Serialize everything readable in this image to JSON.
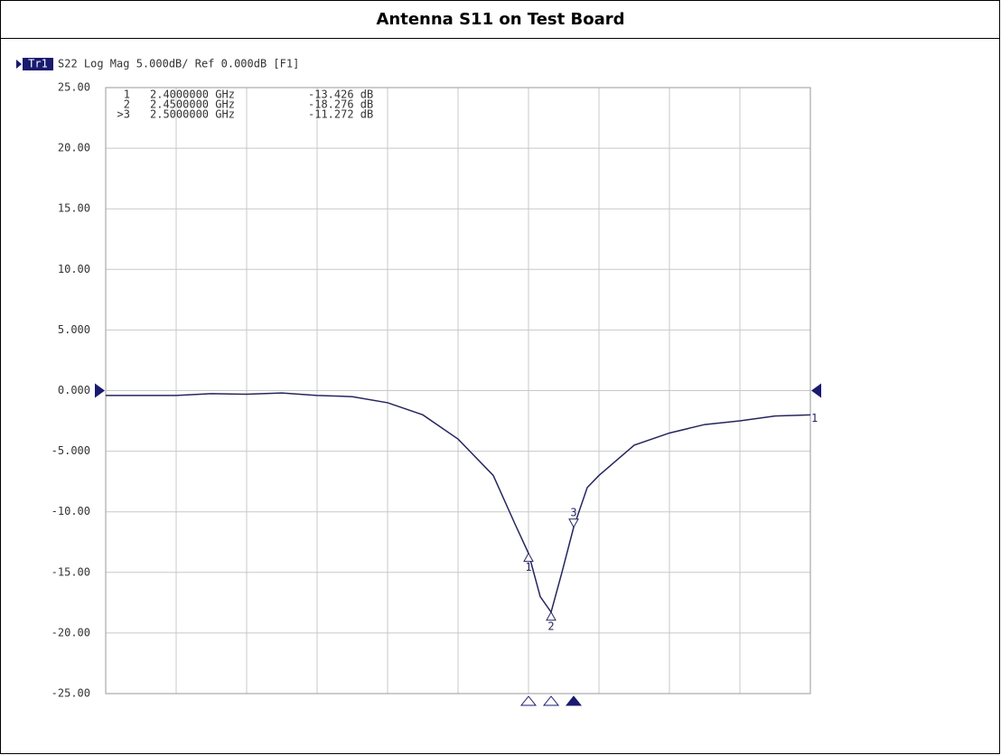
{
  "chart_data": {
    "type": "line",
    "title": "Antenna S11 on Test Board",
    "trace_label": "Tr1",
    "subtitle": "S22 Log Mag 5.000dB/ Ref 0.000dB [F1]",
    "trace_number": "1",
    "x": [
      1.464,
      1.62,
      1.698,
      1.776,
      1.854,
      1.932,
      2.01,
      2.088,
      2.166,
      2.244,
      2.322,
      2.37,
      2.4,
      2.426,
      2.45,
      2.474,
      2.5,
      2.53,
      2.556,
      2.634,
      2.712,
      2.79,
      2.868,
      2.946,
      3.024
    ],
    "series": [
      {
        "name": "S22",
        "color": "#25255e",
        "values": [
          -0.4,
          -0.4,
          -0.25,
          -0.3,
          -0.2,
          -0.4,
          -0.5,
          -1.0,
          -2.0,
          -4.0,
          -7.0,
          -11.0,
          -13.426,
          -17.0,
          -18.276,
          -15.0,
          -11.272,
          -8.0,
          -7.0,
          -4.5,
          -3.5,
          -2.8,
          -2.5,
          -2.1,
          -2.0
        ]
      }
    ],
    "markers": [
      {
        "label": "1",
        "x": 2.4,
        "y": -13.426,
        "active": false
      },
      {
        "label": "2",
        "x": 2.45,
        "y": -18.276,
        "active": false
      },
      {
        "label": "3",
        "x": 2.5,
        "y": -11.272,
        "active": true
      }
    ],
    "readouts": [
      [
        "1",
        "2.4000000 GHz",
        "-13.426 dB"
      ],
      [
        "2",
        "2.4500000 GHz",
        "-18.276 dB"
      ],
      [
        ">3",
        "2.5000000 GHz",
        "-11.272 dB"
      ]
    ],
    "xlim": [
      1.464,
      3.024
    ],
    "xticks": [
      1.464,
      1.62,
      1.776,
      1.932,
      2.088,
      2.244,
      2.4,
      2.556,
      2.712,
      2.868,
      3.024
    ],
    "ylim": [
      -25,
      25
    ],
    "yticks": [
      {
        "value": 25,
        "label": "25.00"
      },
      {
        "value": 20,
        "label": "20.00"
      },
      {
        "value": 15,
        "label": "15.00"
      },
      {
        "value": 10,
        "label": "10.00"
      },
      {
        "value": 5,
        "label": "5.000"
      },
      {
        "value": 0,
        "label": "0.000"
      },
      {
        "value": -5,
        "label": "-5.000"
      },
      {
        "value": -10,
        "label": "-10.00"
      },
      {
        "value": -15,
        "label": "-15.00"
      },
      {
        "value": -20,
        "label": "-20.00"
      },
      {
        "value": -25,
        "label": "-25.00"
      }
    ],
    "grid": true
  }
}
